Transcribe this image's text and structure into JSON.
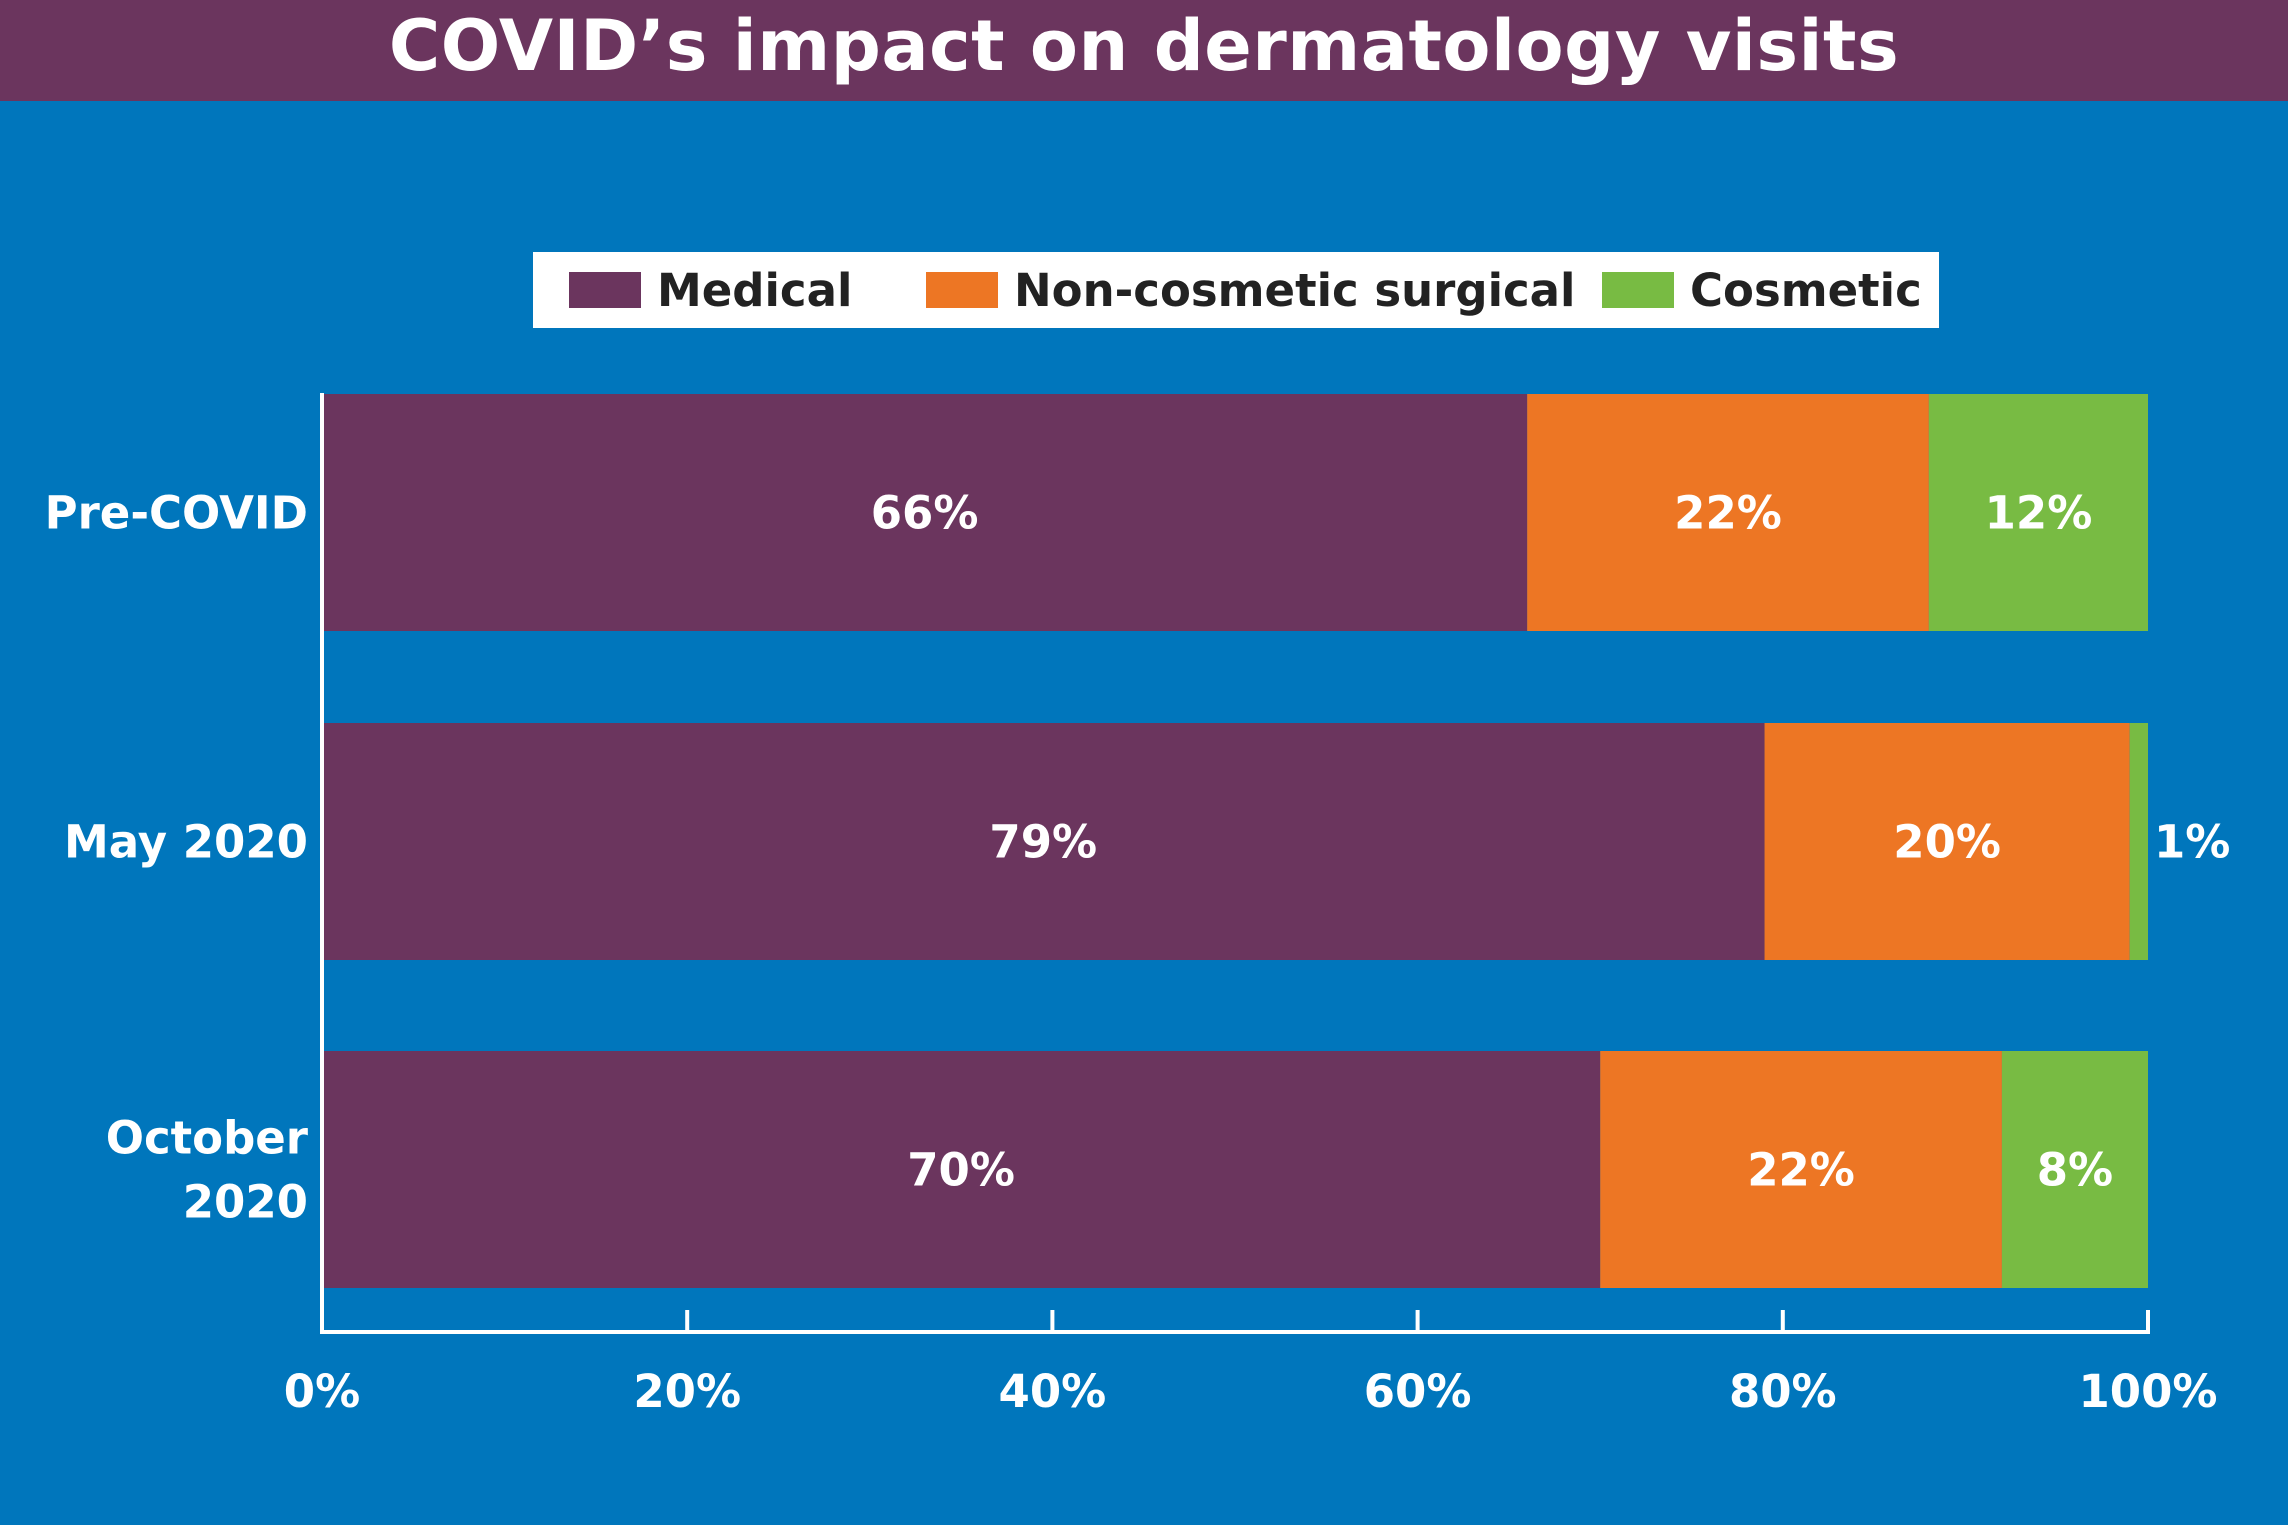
{
  "chart_data": {
    "type": "bar",
    "orientation": "horizontal",
    "stacked": true,
    "title": "COVID’s impact on dermatology visits",
    "categories": [
      "Pre-COVID",
      "May 2020",
      "October 2020"
    ],
    "series": [
      {
        "name": "Medical",
        "color": "#6b355e",
        "values": [
          66,
          79,
          70
        ],
        "labels": [
          "66%",
          "79%",
          "70%"
        ]
      },
      {
        "name": "Non-cosmetic surgical",
        "color": "#ed7624",
        "values": [
          22,
          20,
          22
        ],
        "labels": [
          "22%",
          "20%",
          "22%"
        ]
      },
      {
        "name": "Cosmetic",
        "color": "#78bb43",
        "values": [
          12,
          1,
          8
        ],
        "labels": [
          "12%",
          "1%",
          "8%"
        ]
      }
    ],
    "xlim": [
      0,
      100
    ],
    "xticks": [
      0,
      20,
      40,
      60,
      80,
      100
    ],
    "xtick_labels": [
      "0%",
      "20%",
      "40%",
      "60%",
      "80%",
      "100%"
    ],
    "xlabel": "",
    "ylabel": "",
    "legend_position": "top",
    "grid": false,
    "background": "#0076bc",
    "title_bar_color": "#6b355e"
  }
}
